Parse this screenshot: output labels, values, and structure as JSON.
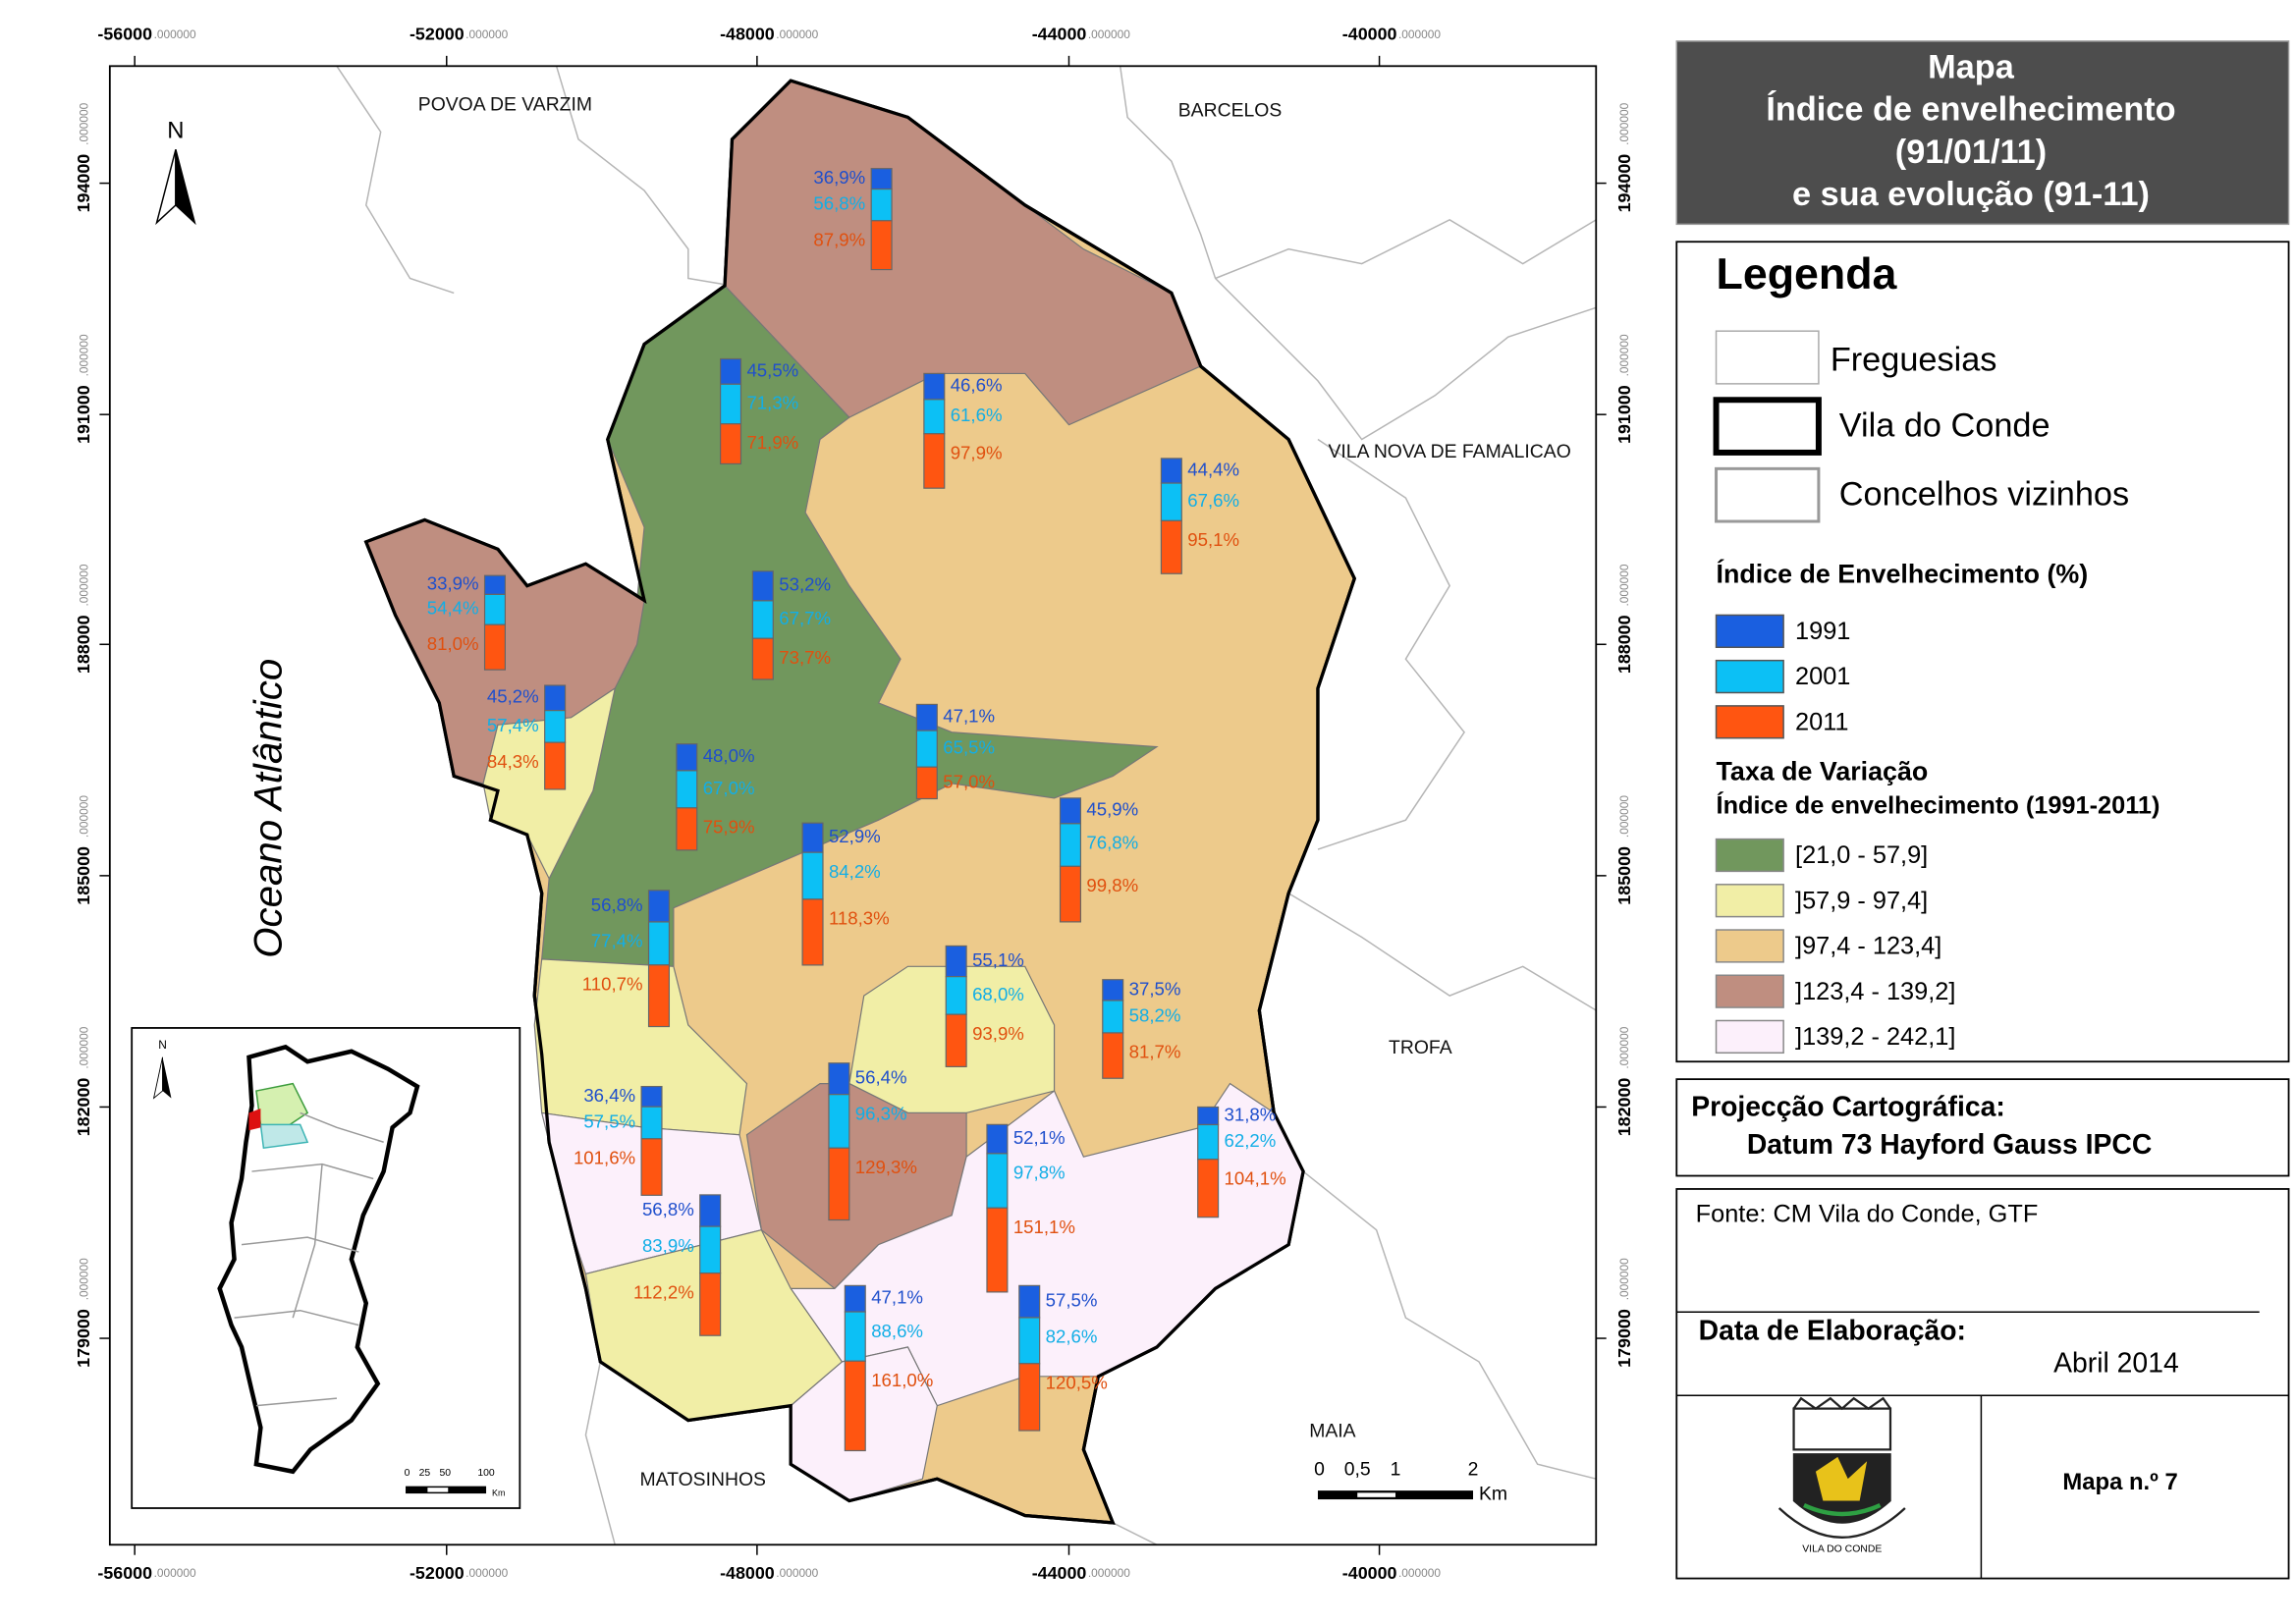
{
  "title_lines": [
    "Mapa",
    "Índice de envelhecimento",
    "(91/01/11)",
    "e sua evolução (91-11)"
  ],
  "legend": {
    "title": "Legenda",
    "boundaries": [
      "Freguesias",
      "Vila do Conde",
      "Concelhos vizinhos"
    ],
    "index_title": "Índice de Envelhecimento (%)",
    "years": [
      {
        "label": "1991",
        "color": "#1a5fe0"
      },
      {
        "label": "2001",
        "color": "#0cc0f5"
      },
      {
        "label": "2011",
        "color": "#ff5511"
      }
    ],
    "rate_title": "Taxa de Variação",
    "rate_subtitle": "Índice de envelhecimento (1991-2011)",
    "classes": [
      {
        "label": "[21,0 - 57,9]",
        "color": "#71975d"
      },
      {
        "label": "]57,9 - 97,4]",
        "color": "#f1eea6"
      },
      {
        "label": "]97,4 - 123,4]",
        "color": "#edca8b"
      },
      {
        "label": "]123,4 - 139,2]",
        "color": "#bf8e80"
      },
      {
        "label": "]139,2 - 242,1]",
        "color": "#fcf0fb"
      }
    ]
  },
  "projection": {
    "title": "Projecção Cartográfica:",
    "datum": "Datum 73 Hayford Gauss IPCC"
  },
  "source": "Fonte: CM Vila do Conde, GTF",
  "date_label": "Data de Elaboração:",
  "date": "Abril 2014",
  "logo_text": "VILA DO CONDE",
  "map_number": "Mapa n.º 7",
  "grid": {
    "x_labels": [
      "-56000",
      "-52000",
      "-48000",
      "-44000",
      "-40000"
    ],
    "y_labels": [
      "194000",
      "191000",
      "188000",
      "185000",
      "182000",
      "179000"
    ],
    "decimals": ".000000"
  },
  "places": [
    "POVOA DE VARZIM",
    "BARCELOS",
    "VILA NOVA DE FAMALICAO",
    "TROFA",
    "MAIA",
    "MATOSINHOS"
  ],
  "ocean": "Oceano Atlântico",
  "north": "N",
  "scale": {
    "labels": [
      "0",
      "0,5",
      "1",
      "2"
    ],
    "unit": "Km"
  },
  "inset_scale": {
    "labels": [
      "0",
      "25",
      "50",
      "100"
    ],
    "unit": "Km"
  },
  "freguesias": [
    {
      "values": [
        36.9,
        56.8,
        87.9
      ],
      "value_labels": [
        "36,9%",
        "56,8%",
        "87,9%"
      ]
    },
    {
      "values": [
        45.5,
        71.3,
        71.9
      ],
      "value_labels": [
        "45,5%",
        "71,3%",
        "71,9%"
      ]
    },
    {
      "values": [
        46.6,
        61.6,
        97.9
      ],
      "value_labels": [
        "46,6%",
        "61,6%",
        "97,9%"
      ]
    },
    {
      "values": [
        44.4,
        67.6,
        95.1
      ],
      "value_labels": [
        "44,4%",
        "67,6%",
        "95,1%"
      ]
    },
    {
      "values": [
        33.9,
        54.4,
        81.0
      ],
      "value_labels": [
        "33,9%",
        "54,4%",
        "81,0%"
      ]
    },
    {
      "values": [
        53.2,
        67.7,
        73.7
      ],
      "value_labels": [
        "53,2%",
        "67,7%",
        "73,7%"
      ]
    },
    {
      "values": [
        45.2,
        57.4,
        84.3
      ],
      "value_labels": [
        "45,2%",
        "57,4%",
        "84,3%"
      ]
    },
    {
      "values": [
        47.1,
        65.5,
        57.0
      ],
      "value_labels": [
        "47,1%",
        "65,5%",
        "57,0%"
      ]
    },
    {
      "values": [
        48.0,
        67.0,
        75.9
      ],
      "value_labels": [
        "48,0%",
        "67,0%",
        "75,9%"
      ]
    },
    {
      "values": [
        52.9,
        84.2,
        118.3
      ],
      "value_labels": [
        "52,9%",
        "84,2%",
        "118,3%"
      ]
    },
    {
      "values": [
        45.9,
        76.8,
        99.8
      ],
      "value_labels": [
        "45,9%",
        "76,8%",
        "99,8%"
      ]
    },
    {
      "values": [
        56.8,
        77.4,
        110.7
      ],
      "value_labels": [
        "56,8%",
        "77,4%",
        "110,7%"
      ]
    },
    {
      "values": [
        55.1,
        68.0,
        93.9
      ],
      "value_labels": [
        "55,1%",
        "68,0%",
        "93,9%"
      ]
    },
    {
      "values": [
        37.5,
        58.2,
        81.7
      ],
      "value_labels": [
        "37,5%",
        "58,2%",
        "81,7%"
      ]
    },
    {
      "values": [
        36.4,
        57.5,
        101.6
      ],
      "value_labels": [
        "36,4%",
        "57,5%",
        "101,6%"
      ]
    },
    {
      "values": [
        56.4,
        96.3,
        129.3
      ],
      "value_labels": [
        "56,4%",
        "96,3%",
        "129,3%"
      ]
    },
    {
      "values": [
        52.1,
        97.8,
        151.1
      ],
      "value_labels": [
        "52,1%",
        "97,8%",
        "151,1%"
      ]
    },
    {
      "values": [
        31.8,
        62.2,
        104.1
      ],
      "value_labels": [
        "31,8%",
        "62,2%",
        "104,1%"
      ]
    },
    {
      "values": [
        56.8,
        83.9,
        112.2
      ],
      "value_labels": [
        "56,8%",
        "83,9%",
        "112,2%"
      ]
    },
    {
      "values": [
        47.1,
        88.6,
        161.0
      ],
      "value_labels": [
        "47,1%",
        "88,6%",
        "161,0%"
      ]
    },
    {
      "values": [
        57.5,
        82.6,
        120.5
      ],
      "value_labels": [
        "57,5%",
        "82,6%",
        "120,5%"
      ]
    }
  ]
}
